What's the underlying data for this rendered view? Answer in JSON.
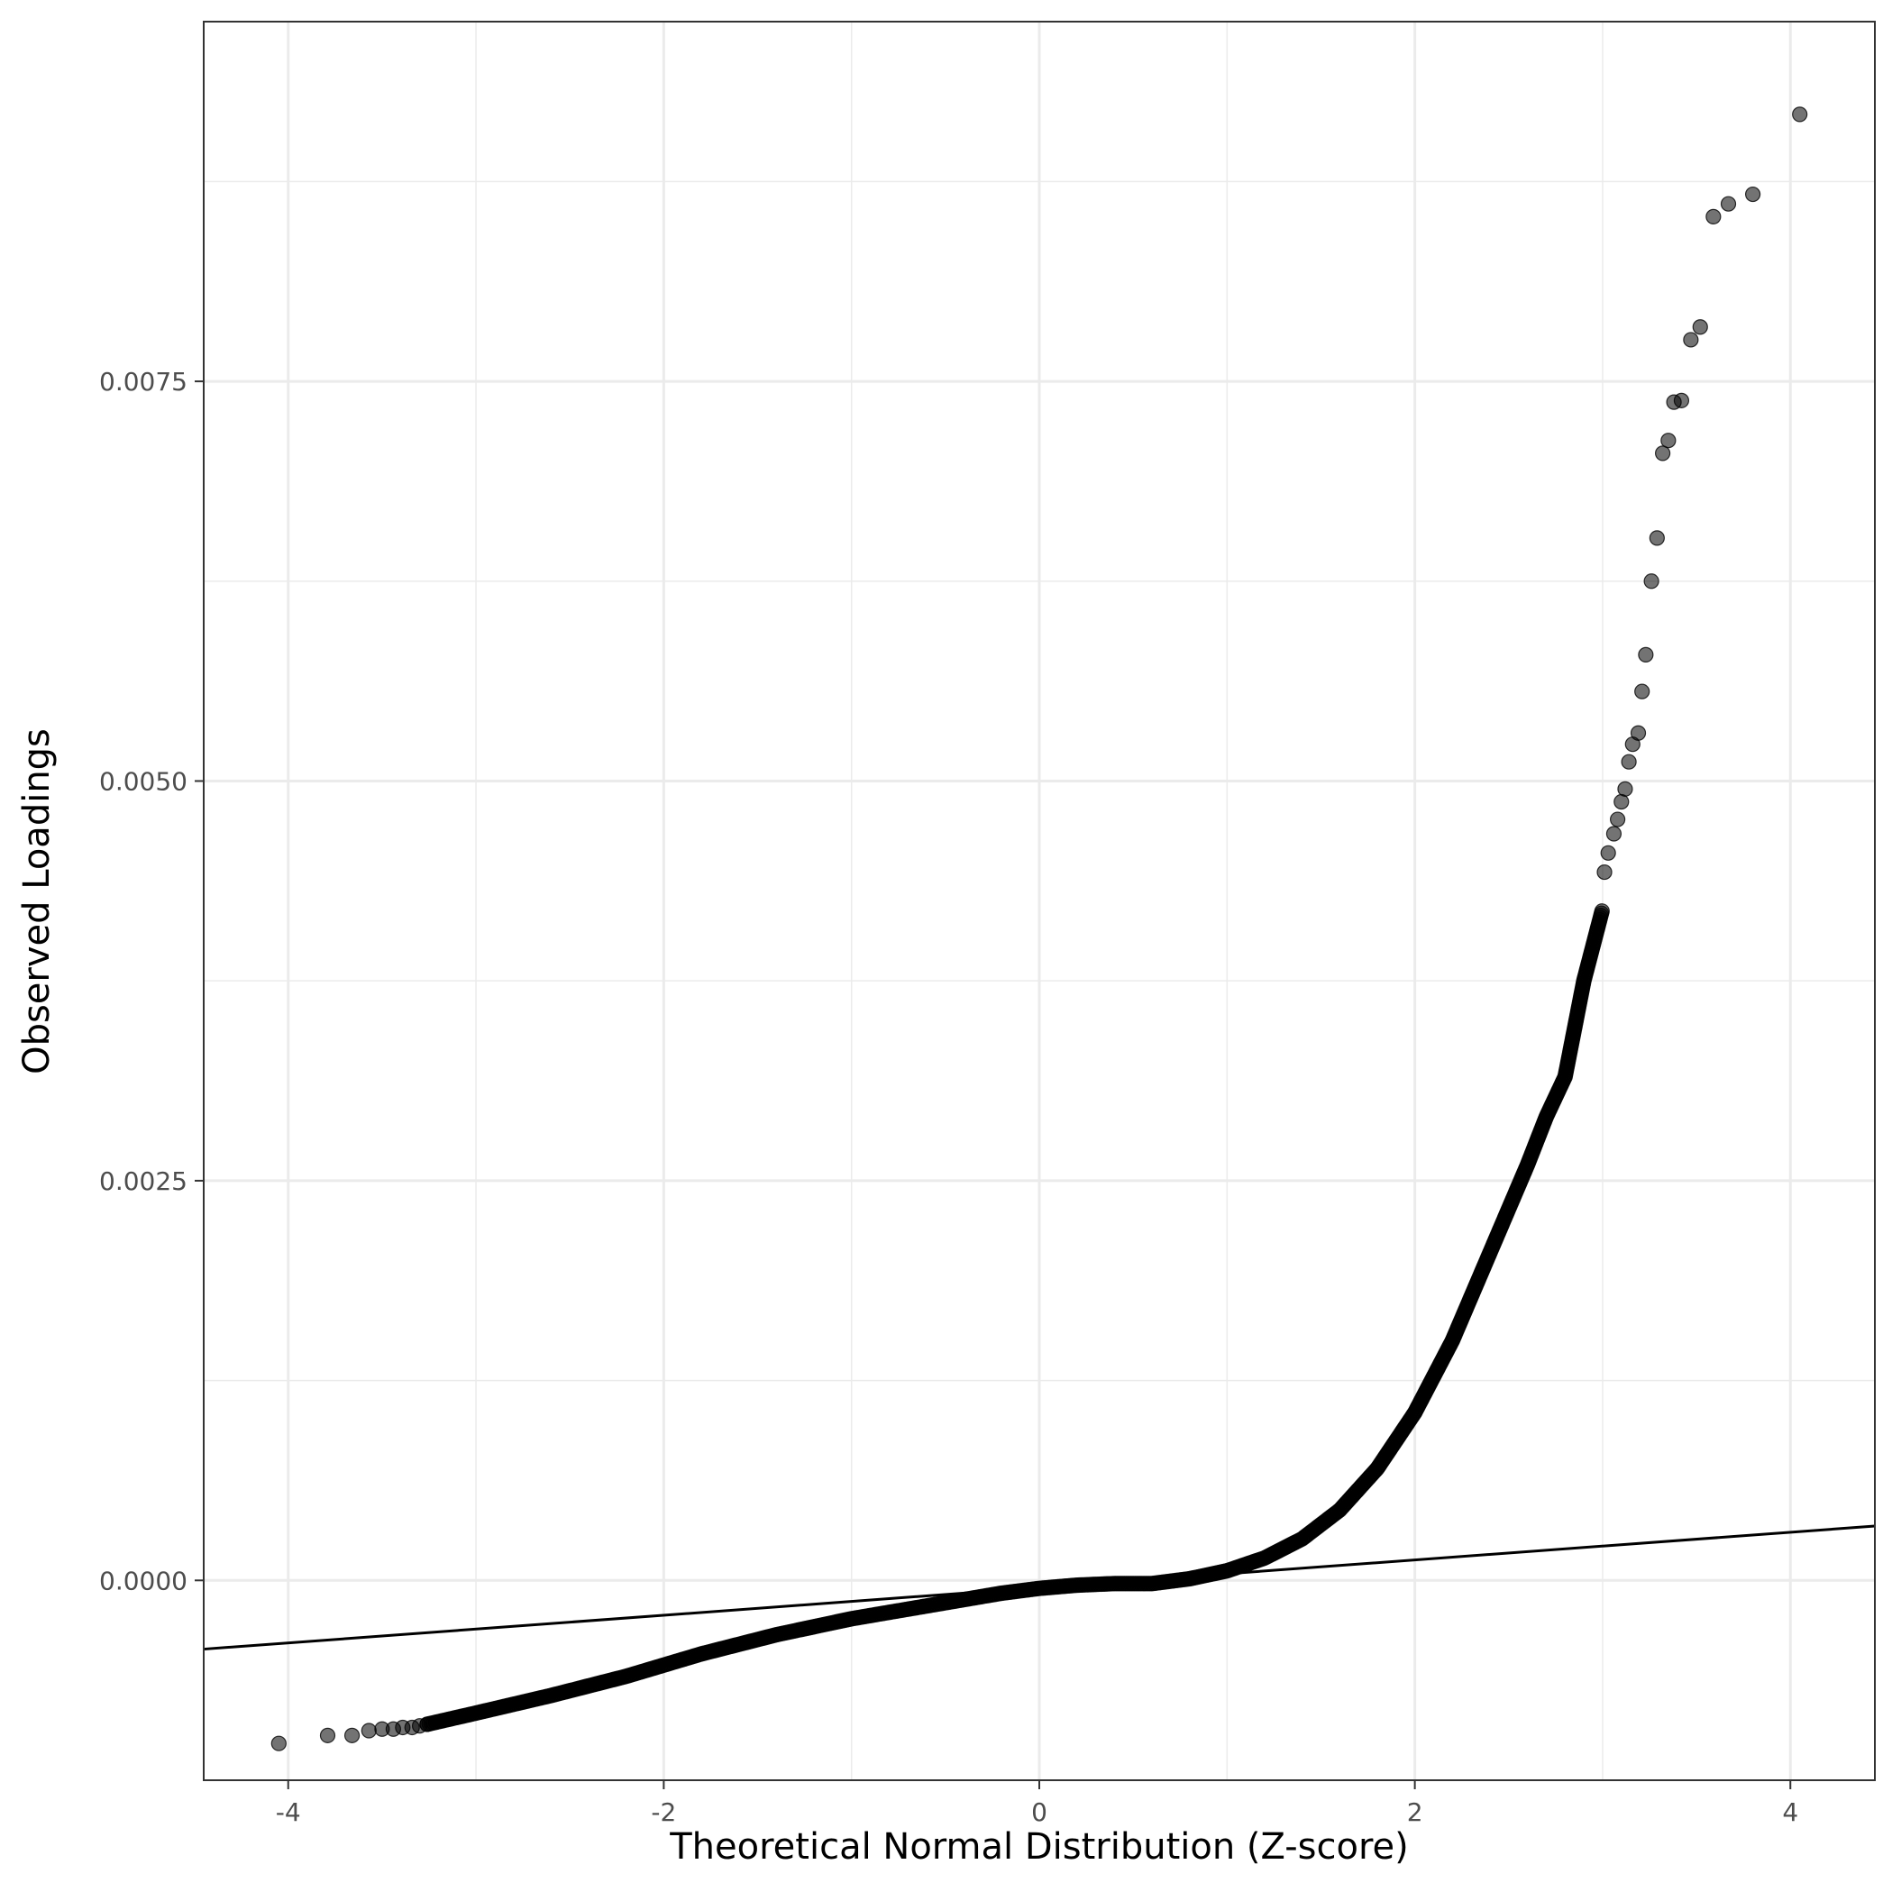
{
  "chart_data": {
    "type": "scatter",
    "title": "",
    "xlabel": "Theoretical Normal Distribution (Z-score)",
    "ylabel": "Observed Loadings",
    "xlim": [
      -4.45,
      4.45
    ],
    "ylim": [
      -0.00125,
      0.00975
    ],
    "x_ticks": [
      -4,
      -2,
      0,
      2,
      4
    ],
    "x_tick_labels": [
      "-4",
      "-2",
      "0",
      "2",
      "4"
    ],
    "y_ticks": [
      0.0,
      0.0025,
      0.005,
      0.0075
    ],
    "y_tick_labels": [
      "0.0000",
      "0.0025",
      "0.0050",
      "0.0075"
    ],
    "grid": true,
    "legend": "none",
    "point_color": "#000000",
    "point_alpha": 0.55,
    "line_color": "#000000",
    "reference_line": {
      "x1": -4.45,
      "y1": -0.00043,
      "x2": 4.45,
      "y2": 0.00034
    },
    "series": [
      {
        "outliers": [
          [
            -4.05,
            -0.00102
          ],
          [
            -3.79,
            -0.00097
          ],
          [
            -3.66,
            -0.00097
          ],
          [
            -3.57,
            -0.00094
          ],
          [
            -3.5,
            -0.00093
          ],
          [
            -3.44,
            -0.00093
          ],
          [
            -3.39,
            -0.00092
          ],
          [
            -3.34,
            -0.00092
          ],
          [
            -3.3,
            -0.00091
          ],
          [
            -3.26,
            -0.0009
          ],
          [
            3.01,
            0.00443
          ],
          [
            3.03,
            0.00455
          ],
          [
            3.06,
            0.00467
          ],
          [
            3.08,
            0.00476
          ],
          [
            3.1,
            0.00487
          ],
          [
            3.12,
            0.00495
          ],
          [
            3.14,
            0.00512
          ],
          [
            3.16,
            0.00523
          ],
          [
            3.19,
            0.0053
          ],
          [
            3.21,
            0.00556
          ],
          [
            3.23,
            0.00579
          ],
          [
            3.26,
            0.00625
          ],
          [
            3.29,
            0.00652
          ],
          [
            3.32,
            0.00705
          ],
          [
            3.35,
            0.00713
          ],
          [
            3.38,
            0.00737
          ],
          [
            3.42,
            0.00738
          ],
          [
            3.47,
            0.00776
          ],
          [
            3.52,
            0.00784
          ],
          [
            3.59,
            0.00853
          ],
          [
            3.67,
            0.00861
          ],
          [
            3.8,
            0.00867
          ],
          [
            4.05,
            0.00917
          ]
        ],
        "curve": [
          [
            -3.26,
            -0.0009
          ],
          [
            -3.0,
            -0.00083
          ],
          [
            -2.6,
            -0.00072
          ],
          [
            -2.2,
            -0.0006
          ],
          [
            -1.8,
            -0.00046
          ],
          [
            -1.4,
            -0.00034
          ],
          [
            -1.0,
            -0.00024
          ],
          [
            -0.6,
            -0.00016
          ],
          [
            -0.2,
            -8e-05
          ],
          [
            0.0,
            -5e-05
          ],
          [
            0.2,
            -3e-05
          ],
          [
            0.4,
            -2e-05
          ],
          [
            0.6,
            -2e-05
          ],
          [
            0.8,
            1e-05
          ],
          [
            1.0,
            6e-05
          ],
          [
            1.2,
            0.00014
          ],
          [
            1.4,
            0.00026
          ],
          [
            1.6,
            0.00044
          ],
          [
            1.8,
            0.0007
          ],
          [
            2.0,
            0.00105
          ],
          [
            2.2,
            0.0015
          ],
          [
            2.4,
            0.00205
          ],
          [
            2.6,
            0.0026
          ],
          [
            2.7,
            0.0029
          ],
          [
            2.8,
            0.00315
          ],
          [
            2.9,
            0.00375
          ],
          [
            3.0,
            0.0042
          ]
        ]
      }
    ]
  }
}
